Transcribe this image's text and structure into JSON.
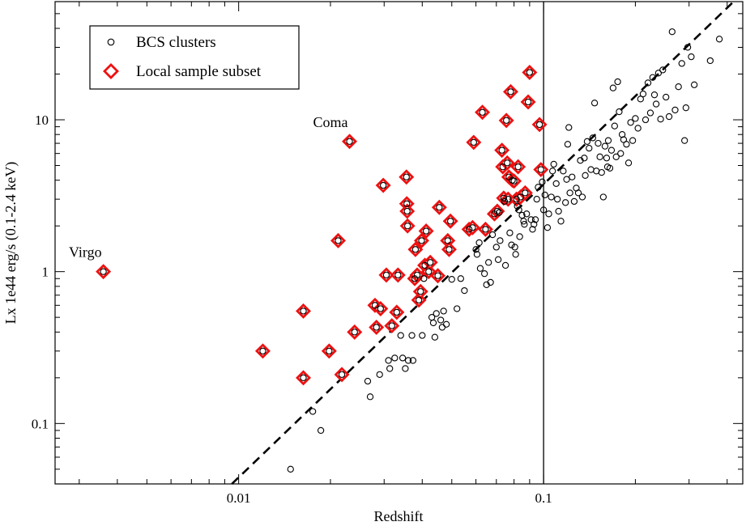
{
  "chart_data": {
    "type": "scatter",
    "title": "",
    "xlabel": "Redshift",
    "ylabel": "Lx 1e44 erg/s (0.1-2.4 keV)",
    "xscale": "log",
    "yscale": "log",
    "xlim": [
      0.0025,
      0.45
    ],
    "ylim": [
      0.04,
      60
    ],
    "x_ticks": [
      0.01,
      0.1
    ],
    "x_tick_labels": [
      "0.01",
      "0.1"
    ],
    "y_ticks": [
      0.1,
      1,
      10
    ],
    "y_tick_labels": [
      "0.1",
      "1",
      "10"
    ],
    "grid": false,
    "legend_position": "top-left",
    "legend": [
      {
        "label": "BCS clusters",
        "marker": "circle",
        "color": "#000000"
      },
      {
        "label": "Local sample subset",
        "marker": "diamond",
        "color": "#ee1111"
      }
    ],
    "reference_lines": [
      {
        "kind": "vertical",
        "x": 0.1,
        "style": "solid"
      },
      {
        "kind": "fit",
        "style": "dashed",
        "points": [
          [
            0.0095,
            0.04
          ],
          [
            0.42,
            60
          ]
        ]
      }
    ],
    "annotations": [
      {
        "text": "Virgo",
        "x": 0.0036,
        "y": 1.0
      },
      {
        "text": "Coma",
        "x": 0.0231,
        "y": 7.2
      }
    ],
    "series": [
      {
        "name": "BCS clusters",
        "marker": "circle",
        "color": "#000000",
        "points": [
          [
            0.0036,
            1.0
          ],
          [
            0.012,
            0.3
          ],
          [
            0.0148,
            0.05
          ],
          [
            0.0163,
            0.2
          ],
          [
            0.0163,
            0.55
          ],
          [
            0.0175,
            0.12
          ],
          [
            0.0186,
            0.09
          ],
          [
            0.0198,
            0.3
          ],
          [
            0.0212,
            1.6
          ],
          [
            0.0218,
            0.21
          ],
          [
            0.0231,
            7.2
          ],
          [
            0.024,
            0.4
          ],
          [
            0.0265,
            0.19
          ],
          [
            0.027,
            0.15
          ],
          [
            0.028,
            0.6
          ],
          [
            0.0283,
            0.43
          ],
          [
            0.029,
            0.21
          ],
          [
            0.0292,
            0.57
          ],
          [
            0.0298,
            3.7
          ],
          [
            0.0305,
            0.95
          ],
          [
            0.031,
            0.26
          ],
          [
            0.0313,
            0.23
          ],
          [
            0.0318,
            0.44
          ],
          [
            0.0325,
            0.27
          ],
          [
            0.033,
            0.54
          ],
          [
            0.0333,
            0.95
          ],
          [
            0.034,
            0.38
          ],
          [
            0.0345,
            0.27
          ],
          [
            0.0352,
            0.23
          ],
          [
            0.0355,
            4.2
          ],
          [
            0.0356,
            2.8
          ],
          [
            0.0357,
            2.5
          ],
          [
            0.0358,
            2.0
          ],
          [
            0.036,
            0.26
          ],
          [
            0.037,
            0.38
          ],
          [
            0.0373,
            0.26
          ],
          [
            0.0378,
            0.9
          ],
          [
            0.038,
            1.4
          ],
          [
            0.0385,
            0.95
          ],
          [
            0.039,
            0.65
          ],
          [
            0.0395,
            0.74
          ],
          [
            0.0398,
            1.6
          ],
          [
            0.04,
            0.38
          ],
          [
            0.0405,
            0.9
          ],
          [
            0.0408,
            1.1
          ],
          [
            0.0412,
            1.85
          ],
          [
            0.042,
            1.0
          ],
          [
            0.0425,
            1.15
          ],
          [
            0.043,
            0.5
          ],
          [
            0.0435,
            0.46
          ],
          [
            0.044,
            0.37
          ],
          [
            0.0445,
            0.53
          ],
          [
            0.045,
            0.94
          ],
          [
            0.0455,
            2.65
          ],
          [
            0.046,
            0.48
          ],
          [
            0.0465,
            0.43
          ],
          [
            0.047,
            0.55
          ],
          [
            0.048,
            0.45
          ],
          [
            0.0485,
            1.6
          ],
          [
            0.049,
            1.4
          ],
          [
            0.0495,
            2.15
          ],
          [
            0.05,
            0.89
          ],
          [
            0.052,
            0.57
          ],
          [
            0.0535,
            0.9
          ],
          [
            0.055,
            0.75
          ],
          [
            0.057,
            1.9
          ],
          [
            0.0585,
            1.95
          ],
          [
            0.059,
            7.1
          ],
          [
            0.06,
            1.4
          ],
          [
            0.0605,
            1.3
          ],
          [
            0.0615,
            1.55
          ],
          [
            0.062,
            1.05
          ],
          [
            0.063,
            11.2
          ],
          [
            0.064,
            0.97
          ],
          [
            0.0645,
            1.9
          ],
          [
            0.065,
            0.82
          ],
          [
            0.066,
            1.15
          ],
          [
            0.067,
            0.85
          ],
          [
            0.068,
            1.75
          ],
          [
            0.069,
            2.4
          ],
          [
            0.07,
            1.45
          ],
          [
            0.0705,
            2.5
          ],
          [
            0.071,
            1.2
          ],
          [
            0.0715,
            2.45
          ],
          [
            0.072,
            1.6
          ],
          [
            0.073,
            6.3
          ],
          [
            0.0735,
            4.9
          ],
          [
            0.074,
            3.05
          ],
          [
            0.0745,
            2.9
          ],
          [
            0.075,
            1.1
          ],
          [
            0.0755,
            9.9
          ],
          [
            0.076,
            5.2
          ],
          [
            0.0765,
            3.0
          ],
          [
            0.077,
            4.2
          ],
          [
            0.0775,
            1.8
          ],
          [
            0.078,
            15.3
          ],
          [
            0.0785,
            1.5
          ],
          [
            0.079,
            4.0
          ],
          [
            0.08,
            3.95
          ],
          [
            0.0805,
            1.45
          ],
          [
            0.081,
            1.3
          ],
          [
            0.0815,
            3.0
          ],
          [
            0.082,
            2.7
          ],
          [
            0.0825,
            4.9
          ],
          [
            0.083,
            2.55
          ],
          [
            0.0835,
            1.7
          ],
          [
            0.084,
            3.1
          ],
          [
            0.085,
            2.35
          ],
          [
            0.086,
            2.15
          ],
          [
            0.0865,
            2.05
          ],
          [
            0.087,
            3.3
          ],
          [
            0.088,
            2.4
          ],
          [
            0.089,
            13.1
          ],
          [
            0.09,
            20.5
          ],
          [
            0.091,
            2.2
          ],
          [
            0.092,
            1.9
          ],
          [
            0.093,
            2.05
          ],
          [
            0.094,
            2.2
          ],
          [
            0.095,
            3.0
          ],
          [
            0.096,
            3.6
          ],
          [
            0.097,
            9.3
          ],
          [
            0.098,
            4.7
          ],
          [
            0.099,
            3.9
          ],
          [
            0.1,
            2.55
          ],
          [
            0.101,
            3.2
          ],
          [
            0.103,
            1.95
          ],
          [
            0.104,
            2.4
          ],
          [
            0.106,
            3.1
          ],
          [
            0.107,
            4.6
          ],
          [
            0.108,
            5.1
          ],
          [
            0.11,
            3.8
          ],
          [
            0.111,
            3.0
          ],
          [
            0.112,
            2.5
          ],
          [
            0.114,
            2.15
          ],
          [
            0.116,
            4.6
          ],
          [
            0.118,
            2.85
          ],
          [
            0.119,
            4.05
          ],
          [
            0.12,
            6.9
          ],
          [
            0.121,
            8.9
          ],
          [
            0.122,
            3.3
          ],
          [
            0.124,
            4.2
          ],
          [
            0.126,
            2.9
          ],
          [
            0.128,
            3.55
          ],
          [
            0.13,
            3.3
          ],
          [
            0.132,
            5.4
          ],
          [
            0.134,
            3.1
          ],
          [
            0.136,
            5.6
          ],
          [
            0.137,
            4.3
          ],
          [
            0.139,
            7.2
          ],
          [
            0.141,
            6.5
          ],
          [
            0.143,
            4.7
          ],
          [
            0.145,
            7.6
          ],
          [
            0.147,
            12.9
          ],
          [
            0.149,
            4.6
          ],
          [
            0.151,
            7.0
          ],
          [
            0.153,
            5.7
          ],
          [
            0.155,
            4.5
          ],
          [
            0.157,
            3.1
          ],
          [
            0.159,
            6.7
          ],
          [
            0.161,
            5.6
          ],
          [
            0.162,
            4.9
          ],
          [
            0.163,
            7.3
          ],
          [
            0.165,
            4.8
          ],
          [
            0.167,
            6.3
          ],
          [
            0.169,
            16.2
          ],
          [
            0.171,
            9.1
          ],
          [
            0.173,
            5.7
          ],
          [
            0.175,
            17.8
          ],
          [
            0.177,
            11.3
          ],
          [
            0.179,
            6.0
          ],
          [
            0.181,
            8.0
          ],
          [
            0.183,
            7.4
          ],
          [
            0.187,
            6.9
          ],
          [
            0.19,
            5.2
          ],
          [
            0.193,
            9.6
          ],
          [
            0.196,
            7.3
          ],
          [
            0.2,
            10.2
          ],
          [
            0.204,
            8.8
          ],
          [
            0.208,
            13.7
          ],
          [
            0.212,
            14.8
          ],
          [
            0.216,
            10.0
          ],
          [
            0.22,
            17.5
          ],
          [
            0.224,
            11.1
          ],
          [
            0.228,
            19.0
          ],
          [
            0.231,
            14.6
          ],
          [
            0.234,
            12.7
          ],
          [
            0.238,
            20.3
          ],
          [
            0.242,
            10.1
          ],
          [
            0.246,
            21.3
          ],
          [
            0.252,
            14.1
          ],
          [
            0.258,
            10.5
          ],
          [
            0.264,
            38.0
          ],
          [
            0.27,
            11.6
          ],
          [
            0.277,
            16.5
          ],
          [
            0.284,
            23.5
          ],
          [
            0.29,
            7.3
          ],
          [
            0.293,
            12.0
          ],
          [
            0.297,
            30.0
          ],
          [
            0.305,
            26.0
          ],
          [
            0.312,
            17.0
          ],
          [
            0.352,
            24.5
          ],
          [
            0.377,
            34.0
          ]
        ]
      },
      {
        "name": "Local sample subset",
        "marker": "diamond",
        "color": "#ee1111",
        "points": [
          [
            0.0036,
            1.0
          ],
          [
            0.012,
            0.3
          ],
          [
            0.0163,
            0.2
          ],
          [
            0.0163,
            0.55
          ],
          [
            0.0198,
            0.3
          ],
          [
            0.0212,
            1.6
          ],
          [
            0.0218,
            0.21
          ],
          [
            0.0231,
            7.2
          ],
          [
            0.024,
            0.4
          ],
          [
            0.028,
            0.6
          ],
          [
            0.0283,
            0.43
          ],
          [
            0.0292,
            0.57
          ],
          [
            0.0298,
            3.7
          ],
          [
            0.0305,
            0.95
          ],
          [
            0.0318,
            0.44
          ],
          [
            0.033,
            0.54
          ],
          [
            0.0333,
            0.95
          ],
          [
            0.0355,
            4.2
          ],
          [
            0.0356,
            2.8
          ],
          [
            0.0357,
            2.5
          ],
          [
            0.0358,
            2.0
          ],
          [
            0.0378,
            0.9
          ],
          [
            0.038,
            1.4
          ],
          [
            0.0385,
            0.95
          ],
          [
            0.039,
            0.65
          ],
          [
            0.0395,
            0.74
          ],
          [
            0.0398,
            1.6
          ],
          [
            0.0408,
            1.1
          ],
          [
            0.0412,
            1.85
          ],
          [
            0.042,
            1.0
          ],
          [
            0.0425,
            1.15
          ],
          [
            0.045,
            0.94
          ],
          [
            0.0455,
            2.65
          ],
          [
            0.0485,
            1.6
          ],
          [
            0.049,
            1.4
          ],
          [
            0.0495,
            2.15
          ],
          [
            0.057,
            1.9
          ],
          [
            0.0585,
            1.95
          ],
          [
            0.059,
            7.1
          ],
          [
            0.063,
            11.2
          ],
          [
            0.0645,
            1.9
          ],
          [
            0.069,
            2.4
          ],
          [
            0.0705,
            2.5
          ],
          [
            0.073,
            6.3
          ],
          [
            0.0735,
            4.9
          ],
          [
            0.074,
            3.05
          ],
          [
            0.0755,
            9.9
          ],
          [
            0.076,
            5.2
          ],
          [
            0.0765,
            3.0
          ],
          [
            0.077,
            4.2
          ],
          [
            0.078,
            15.3
          ],
          [
            0.079,
            4.0
          ],
          [
            0.08,
            3.95
          ],
          [
            0.0815,
            3.0
          ],
          [
            0.0825,
            4.9
          ],
          [
            0.084,
            3.1
          ],
          [
            0.087,
            3.3
          ],
          [
            0.089,
            13.1
          ],
          [
            0.09,
            20.5
          ],
          [
            0.097,
            9.3
          ],
          [
            0.098,
            4.7
          ]
        ]
      }
    ]
  }
}
